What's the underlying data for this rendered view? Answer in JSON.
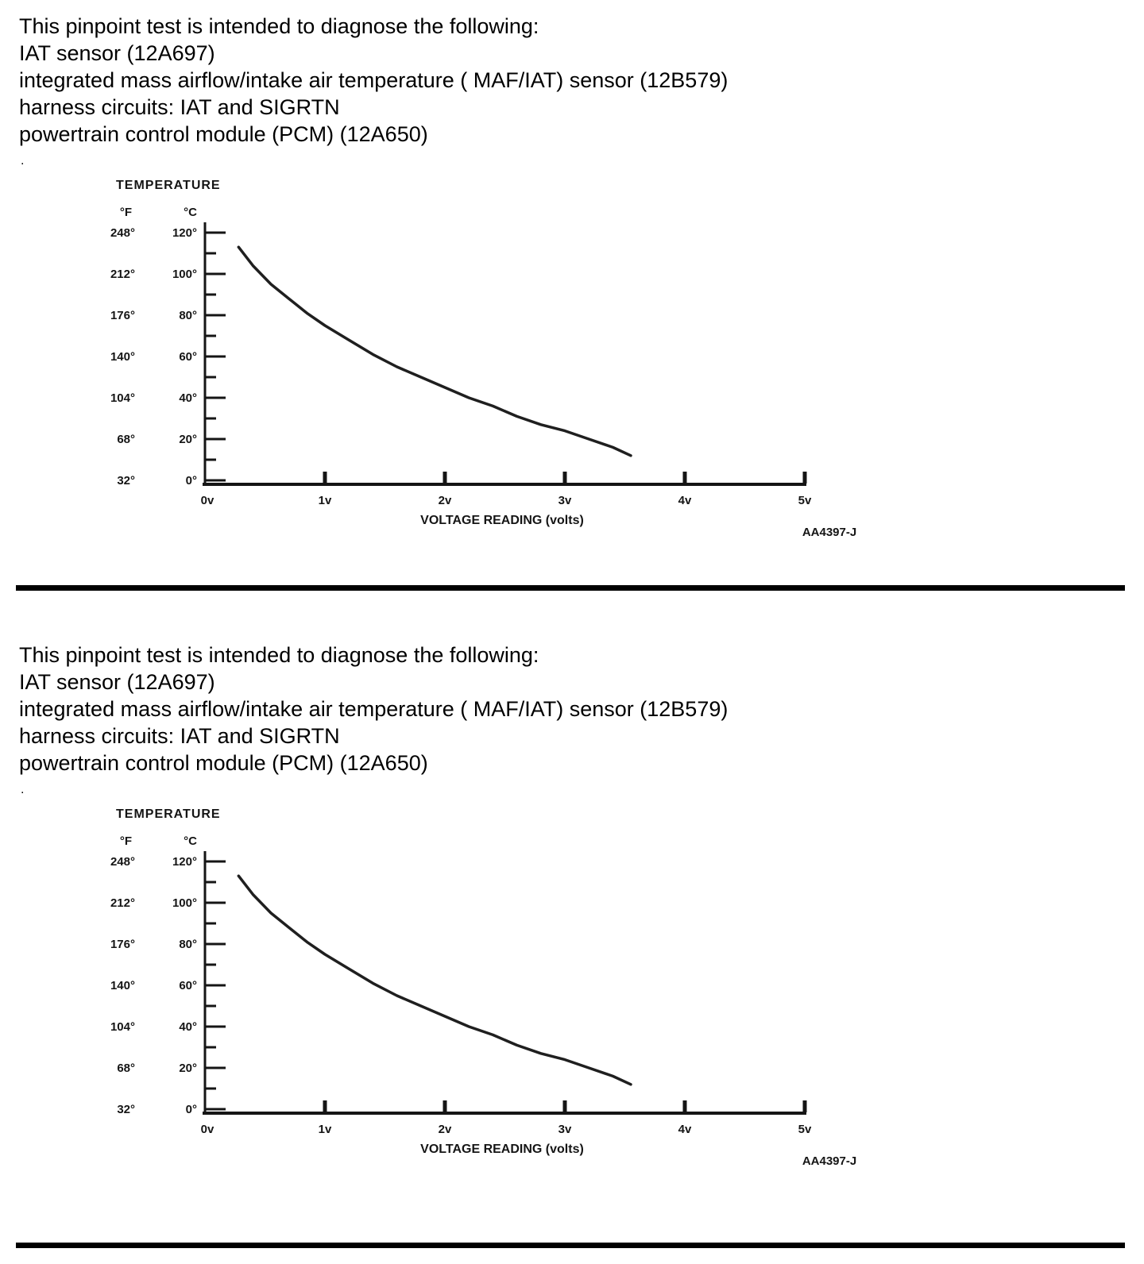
{
  "sections": [
    {
      "lines": [
        "This pinpoint test is intended to diagnose the following:",
        "IAT sensor (12A697)",
        "integrated mass airflow/intake air temperature ( MAF/IAT) sensor (12B579)",
        "harness circuits: IAT and SIGRTN",
        "powertrain control module (PCM) (12A650)"
      ],
      "stray_dot": "."
    },
    {
      "lines": [
        "This pinpoint test is intended to diagnose the following:",
        "IAT sensor (12A697)",
        "integrated mass airflow/intake air temperature ( MAF/IAT) sensor (12B579)",
        "harness circuits: IAT and SIGRTN",
        "powertrain control module (PCM) (12A650)"
      ],
      "stray_dot": "."
    }
  ],
  "chart_data": {
    "type": "line",
    "title": "TEMPERATURE",
    "xlabel": "VOLTAGE READING (volts)",
    "figure_code": "AA4397-J",
    "fahrenheit_label": "°F",
    "celsius_label": "°C",
    "f_ticks": [
      "248°",
      "212°",
      "176°",
      "140°",
      "104°",
      "68°",
      "32°"
    ],
    "c_ticks": [
      "120°",
      "100°",
      "80°",
      "60°",
      "40°",
      "20°",
      "0°"
    ],
    "x_ticks": [
      "0v",
      "1v",
      "2v",
      "3v",
      "4v",
      "5v"
    ],
    "x_range_volts": [
      0,
      5
    ],
    "y_range_celsius": [
      0,
      120
    ],
    "grid": false,
    "curve_points_volts_celsius": [
      [
        0.28,
        113
      ],
      [
        0.4,
        104
      ],
      [
        0.55,
        95
      ],
      [
        0.7,
        88
      ],
      [
        0.85,
        81
      ],
      [
        1.0,
        75
      ],
      [
        1.2,
        68
      ],
      [
        1.4,
        61
      ],
      [
        1.6,
        55
      ],
      [
        1.8,
        50
      ],
      [
        2.0,
        45
      ],
      [
        2.2,
        40
      ],
      [
        2.4,
        36
      ],
      [
        2.6,
        31
      ],
      [
        2.8,
        27
      ],
      [
        3.0,
        24
      ],
      [
        3.2,
        20
      ],
      [
        3.4,
        16
      ],
      [
        3.55,
        12
      ]
    ],
    "axis_color": "#151515",
    "curve_color": "#1f1f1f"
  }
}
